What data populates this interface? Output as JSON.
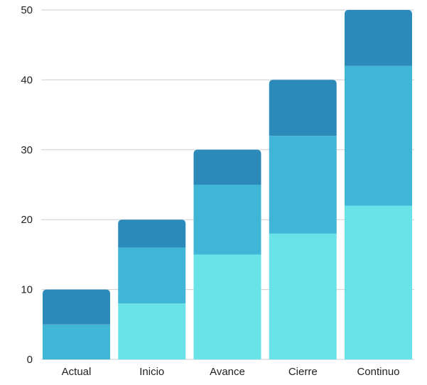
{
  "chart_data": {
    "type": "bar",
    "stacked": true,
    "title": "",
    "xlabel": "",
    "ylabel": "",
    "categories": [
      "Actual",
      "Inicio",
      "Avance",
      "Cierre",
      "Continuo"
    ],
    "series": [
      {
        "values": [
          0,
          8,
          15,
          18,
          22
        ],
        "color": "#6ae3e8"
      },
      {
        "values": [
          5,
          8,
          10,
          14,
          20
        ],
        "color": "#40b6d6"
      },
      {
        "values": [
          5,
          4,
          5,
          8,
          8
        ],
        "color": "#2b8aba"
      }
    ],
    "ylim": [
      0,
      50
    ],
    "yticks": [
      0,
      10,
      20,
      30,
      40,
      50
    ],
    "grid": true,
    "legend": "none"
  }
}
